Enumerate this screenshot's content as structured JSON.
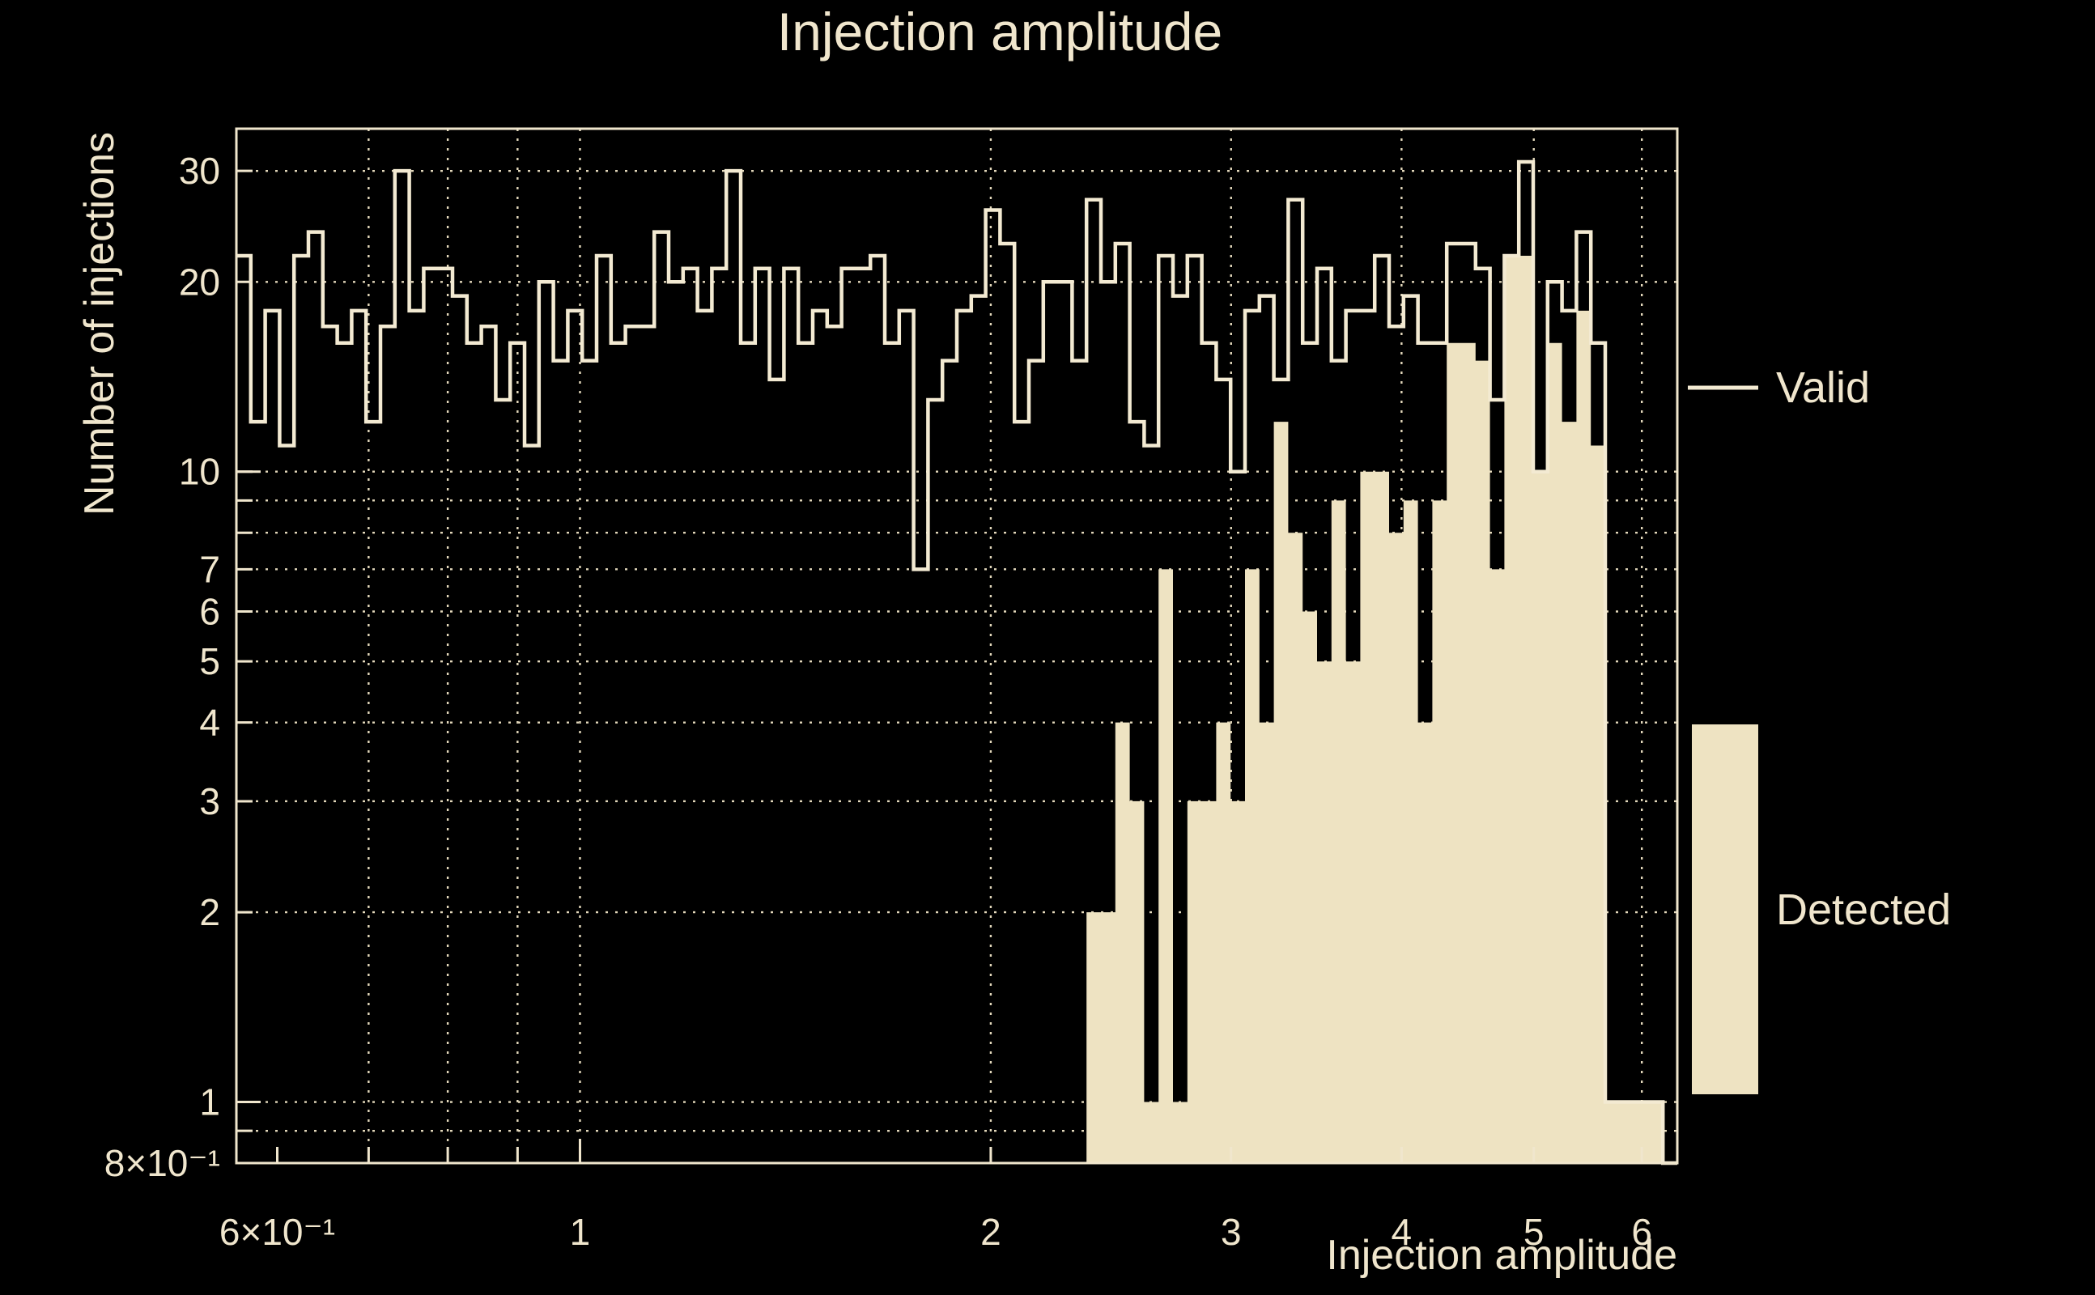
{
  "title": "Injection amplitude",
  "axes": {
    "xlabel": "Injection amplitude",
    "ylabel": "Number of injections",
    "x_ticks": [
      {
        "v": 0.6,
        "label": "6×10⁻¹"
      },
      {
        "v": 1,
        "label": "1"
      },
      {
        "v": 2,
        "label": "2"
      },
      {
        "v": 3,
        "label": "3"
      },
      {
        "v": 4,
        "label": "4"
      },
      {
        "v": 5,
        "label": "5"
      },
      {
        "v": 6,
        "label": "6"
      }
    ],
    "y_ticks": [
      {
        "v": 30,
        "label": "30"
      },
      {
        "v": 20,
        "label": "20"
      },
      {
        "v": 10,
        "label": "10"
      },
      {
        "v": 7,
        "label": "7"
      },
      {
        "v": 6,
        "label": "6"
      },
      {
        "v": 5,
        "label": "5"
      },
      {
        "v": 4,
        "label": "4"
      },
      {
        "v": 3,
        "label": "3"
      },
      {
        "v": 2,
        "label": "2"
      },
      {
        "v": 1,
        "label": "1"
      },
      {
        "v": 0.8,
        "label": "8×10⁻¹"
      }
    ],
    "grid_x": [
      0.7,
      0.8,
      0.9,
      1,
      2,
      3,
      4,
      5,
      6
    ],
    "grid_y": [
      0.9,
      1,
      2,
      3,
      4,
      5,
      6,
      7,
      8,
      9,
      10,
      20,
      30
    ]
  },
  "legend": {
    "valid": "Valid",
    "detected": "Detected"
  },
  "colors": {
    "background": "#000000",
    "frame": "#f0e6cd",
    "grid": "#e3d8bb",
    "text": "#f0e6cd",
    "valid_line": "#f3ead2",
    "detected_fill": "#eee3c2"
  },
  "chart_data": {
    "type": "histogram",
    "title": "Injection amplitude",
    "xlabel": "Injection amplitude",
    "ylabel": "Number of injections",
    "x_scale": "log",
    "y_scale": "log",
    "xlim": [
      0.56,
      6.37
    ],
    "ylim": [
      0.8,
      35
    ],
    "grid": true,
    "legend_position": "right",
    "bins": {
      "count": 100,
      "min": 0.56,
      "max": 6.37,
      "spacing": "log"
    },
    "series": [
      {
        "name": "Valid",
        "style": "step-outline",
        "values": [
          22,
          12,
          18,
          11,
          22,
          24,
          17,
          16,
          18,
          12,
          17,
          30,
          18,
          21,
          21,
          19,
          16,
          17,
          13,
          16,
          11,
          20,
          15,
          18,
          15,
          22,
          16,
          17,
          17,
          24,
          20,
          21,
          18,
          21,
          30,
          16,
          21,
          14,
          21,
          16,
          18,
          17,
          21,
          21,
          22,
          16,
          18,
          7,
          13,
          15,
          18,
          19,
          26,
          23,
          12,
          15,
          20,
          20,
          15,
          27,
          20,
          23,
          12,
          11,
          22,
          19,
          22,
          16,
          14,
          10,
          18,
          19,
          14,
          27,
          16,
          21,
          15,
          18,
          18,
          22,
          17,
          19,
          16,
          16,
          23,
          23,
          21,
          13,
          22,
          31,
          10,
          20,
          18,
          24,
          16,
          1,
          1,
          1,
          1,
          0
        ]
      },
      {
        "name": "Detected",
        "style": "filled",
        "values": [
          0,
          0,
          0,
          0,
          0,
          0,
          0,
          0,
          0,
          0,
          0,
          0,
          0,
          0,
          0,
          0,
          0,
          0,
          0,
          0,
          0,
          0,
          0,
          0,
          0,
          0,
          0,
          0,
          0,
          0,
          0,
          0,
          0,
          0,
          0,
          0,
          0,
          0,
          0,
          0,
          0,
          0,
          0,
          0,
          0,
          0,
          0,
          0,
          0,
          0,
          0,
          0,
          0,
          0,
          0,
          0,
          0,
          0,
          0,
          2,
          2,
          4,
          3,
          1,
          7,
          1,
          3,
          3,
          4,
          3,
          7,
          4,
          12,
          8,
          6,
          5,
          9,
          5,
          10,
          10,
          8,
          9,
          4,
          9,
          16,
          16,
          15,
          7,
          22,
          22,
          10,
          16,
          12,
          18,
          11,
          1,
          1,
          1,
          1,
          0
        ]
      }
    ]
  }
}
